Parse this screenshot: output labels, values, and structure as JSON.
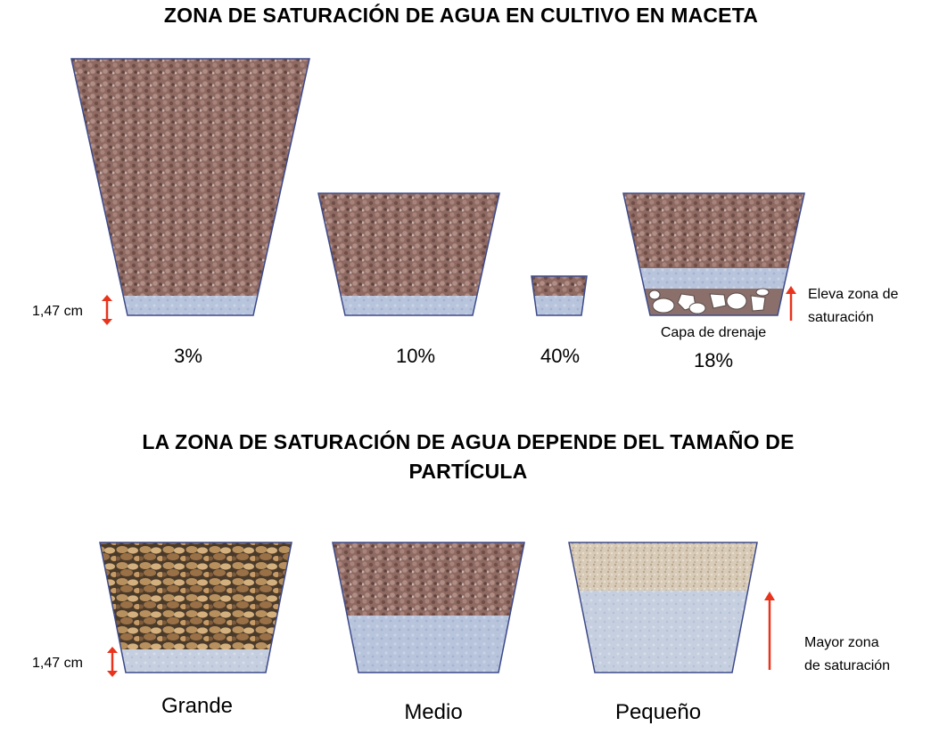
{
  "diagram": {
    "title_top": "ZONA DE SATURACIÓN DE AGUA EN CULTIVO EN MACETA",
    "title_bottom_line1": "LA ZONA DE SATURACIÓN DE AGUA DEPENDE DEL TAMAÑO DE",
    "title_bottom_line2": "PARTÍCULA",
    "pots_top": [
      {
        "percent": "3%"
      },
      {
        "percent": "10%"
      },
      {
        "percent": "40%"
      },
      {
        "percent": "18%",
        "layer_label": "Capa de drenaje"
      }
    ],
    "measurement_top": "1,47 cm",
    "annotation_right_top_line1": "Eleva zona de",
    "annotation_right_top_line2": "saturación",
    "pots_bottom": [
      {
        "label": "Grande"
      },
      {
        "label": "Medio"
      },
      {
        "label": "Pequeño"
      }
    ],
    "measurement_bottom": "1,47 cm",
    "annotation_right_bottom_line1": "Mayor zona",
    "annotation_right_bottom_line2": "de saturación",
    "colors": {
      "arrow": "#e8341c",
      "pot_outline": "#3c4a8a",
      "water": "#b8c4dc",
      "substrate_red": "#8f6a63",
      "pebbles": "#9a7a55",
      "fine_sand": "#d8cbb8"
    }
  }
}
